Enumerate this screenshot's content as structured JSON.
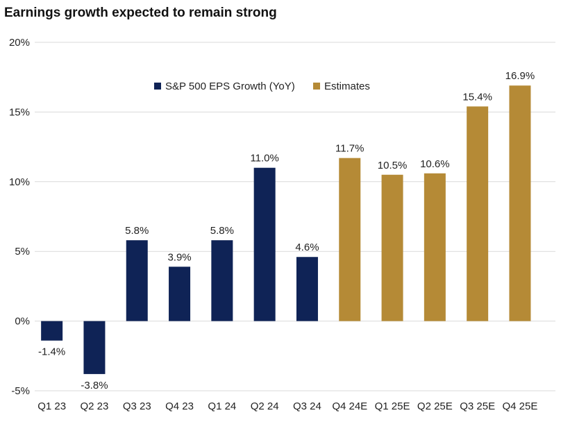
{
  "title": "Earnings growth expected to remain strong",
  "chart_data": {
    "type": "bar",
    "title": "Earnings growth expected to remain strong",
    "categories": [
      "Q1 23",
      "Q2 23",
      "Q3 23",
      "Q4 23",
      "Q1 24",
      "Q2 24",
      "Q3 24",
      "Q4 24E",
      "Q1 25E",
      "Q2 25E",
      "Q3 25E",
      "Q4 25E"
    ],
    "values": [
      -1.4,
      -3.8,
      5.8,
      3.9,
      5.8,
      11.0,
      4.6,
      11.7,
      10.5,
      10.6,
      15.4,
      16.9
    ],
    "data_labels": [
      "-1.4%",
      "-3.8%",
      "5.8%",
      "3.9%",
      "5.8%",
      "11.0%",
      "4.6%",
      "11.7%",
      "10.5%",
      "10.6%",
      "15.4%",
      "16.9%"
    ],
    "series_of_bar": [
      "S&P 500 EPS Growth (YoY)",
      "S&P 500 EPS Growth (YoY)",
      "S&P 500 EPS Growth (YoY)",
      "S&P 500 EPS Growth (YoY)",
      "S&P 500 EPS Growth (YoY)",
      "S&P 500 EPS Growth (YoY)",
      "S&P 500 EPS Growth (YoY)",
      "Estimates",
      "Estimates",
      "Estimates",
      "Estimates",
      "Estimates"
    ],
    "series": [
      {
        "name": "S&P 500 EPS Growth (YoY)",
        "color": "#0f2356"
      },
      {
        "name": "Estimates",
        "color": "#b58a36"
      }
    ],
    "ylim": [
      -5,
      20
    ],
    "yticks": [
      -5,
      0,
      5,
      10,
      15,
      20
    ],
    "ytick_labels": [
      "-5%",
      "0%",
      "5%",
      "10%",
      "15%",
      "20%"
    ],
    "xlabel": "",
    "ylabel": "",
    "grid": true,
    "gridline_color": "#d9d9d9",
    "legend_position": "top-center"
  }
}
